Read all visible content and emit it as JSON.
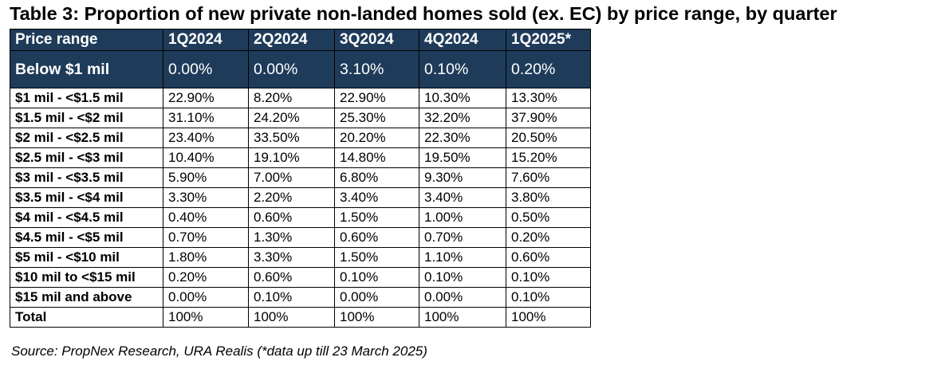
{
  "title": "Table 3: Proportion of new private non-landed homes sold (ex. EC) by price range, by quarter",
  "colors": {
    "header_bg": "#1f3b5a",
    "header_text": "#ffffff",
    "border": "#000000"
  },
  "table": {
    "columns": [
      "Price range",
      "1Q2024",
      "2Q2024",
      "3Q2024",
      "4Q2024",
      "1Q2025*"
    ],
    "highlight_row": [
      "Below $1 mil",
      "0.00%",
      "0.00%",
      "3.10%",
      "0.10%",
      "0.20%"
    ],
    "rows": [
      [
        "$1 mil - <$1.5 mil",
        "22.90%",
        "8.20%",
        "22.90%",
        "10.30%",
        "13.30%"
      ],
      [
        "$1.5 mil - <$2 mil",
        "31.10%",
        "24.20%",
        "25.30%",
        "32.20%",
        "37.90%"
      ],
      [
        "$2 mil - <$2.5 mil",
        "23.40%",
        "33.50%",
        "20.20%",
        "22.30%",
        "20.50%"
      ],
      [
        "$2.5 mil - <$3 mil",
        "10.40%",
        "19.10%",
        "14.80%",
        "19.50%",
        "15.20%"
      ],
      [
        "$3 mil - <$3.5 mil",
        "5.90%",
        "7.00%",
        "6.80%",
        "9.30%",
        "7.60%"
      ],
      [
        "$3.5 mil - <$4 mil",
        "3.30%",
        "2.20%",
        "3.40%",
        "3.40%",
        "3.80%"
      ],
      [
        "$4 mil - <$4.5 mil",
        "0.40%",
        "0.60%",
        "1.50%",
        "1.00%",
        "0.50%"
      ],
      [
        "$4.5 mil - <$5 mil",
        "0.70%",
        "1.30%",
        "0.60%",
        "0.70%",
        "0.20%"
      ],
      [
        "$5 mil - <$10 mil",
        "1.80%",
        "3.30%",
        "1.50%",
        "1.10%",
        "0.60%"
      ],
      [
        "$10 mil to <$15 mil",
        "0.20%",
        "0.60%",
        "0.10%",
        "0.10%",
        "0.10%"
      ],
      [
        "$15 mil and above",
        "0.00%",
        "0.10%",
        "0.00%",
        "0.00%",
        "0.10%"
      ],
      [
        "Total",
        "100%",
        "100%",
        "100%",
        "100%",
        "100%"
      ]
    ]
  },
  "source": "Source: PropNex Research, URA Realis (*data up till 23 March 2025)"
}
